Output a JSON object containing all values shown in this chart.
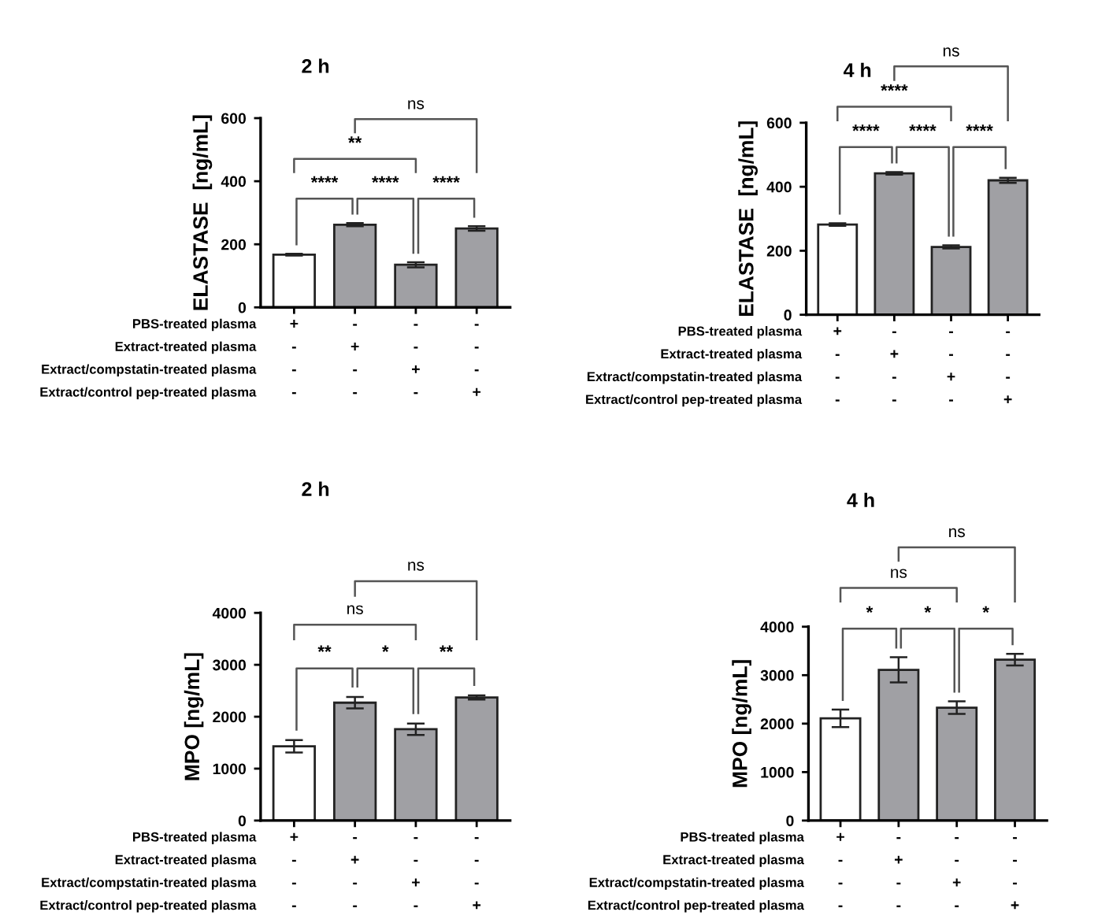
{
  "chart_data": [
    {
      "type": "bar",
      "title": "2 h",
      "ylabel": "ELASTASE  [ng/mL]",
      "categories": [
        "+\n-\n-\n-",
        "-\n+\n-\n-",
        "-\n-\n+\n-",
        "-\n-\n-\n+"
      ],
      "values": [
        167,
        262,
        135,
        250
      ],
      "errors": [
        3,
        5,
        8,
        7
      ],
      "colors": [
        "#ffffff",
        "#a0a0a4",
        "#a0a0a4",
        "#a0a0a4"
      ],
      "ylim": [
        0,
        600
      ],
      "yticks": [
        0,
        200,
        400,
        600
      ],
      "annotations": [
        "PBS-treated plasma",
        "Extract-treated plasma",
        "Extract/compstatin-treated plasma",
        "Extract/control pep-treated plasma",
        "****",
        "****",
        "****",
        "**",
        "ns"
      ]
    },
    {
      "type": "bar",
      "title": "4 h",
      "ylabel": "ELASTASE  [ng/mL]",
      "categories": [
        "+\n-\n-\n-",
        "-\n+\n-\n-",
        "-\n-\n+\n-",
        "-\n-\n-\n+"
      ],
      "values": [
        282,
        442,
        212,
        420
      ],
      "errors": [
        4,
        4,
        5,
        8
      ],
      "colors": [
        "#ffffff",
        "#a0a0a4",
        "#a0a0a4",
        "#a0a0a4"
      ],
      "ylim": [
        0,
        600
      ],
      "yticks": [
        0,
        200,
        400,
        600
      ],
      "annotations": [
        "PBS-treated plasma",
        "Extract-treated plasma",
        "Extract/compstatin-treated plasma",
        "Extract/control pep-treated plasma",
        "****",
        "****",
        "****",
        "****",
        "ns"
      ]
    },
    {
      "type": "bar",
      "title": "2 h",
      "ylabel": "MPO [ng/mL]",
      "categories": [
        "+\n-\n-\n-",
        "-\n+\n-\n-",
        "-\n-\n+\n-",
        "-\n-\n-\n+"
      ],
      "values": [
        1430,
        2270,
        1760,
        2370
      ],
      "errors": [
        120,
        110,
        110,
        40
      ],
      "colors": [
        "#ffffff",
        "#a0a0a4",
        "#a0a0a4",
        "#a0a0a4"
      ],
      "ylim": [
        0,
        4000
      ],
      "yticks": [
        0,
        1000,
        2000,
        3000,
        4000
      ],
      "annotations": [
        "PBS-treated plasma",
        "Extract-treated plasma",
        "Extract/compstatin-treated plasma",
        "Extract/control pep-treated plasma",
        "**",
        "*",
        "**",
        "ns",
        "ns"
      ]
    },
    {
      "type": "bar",
      "title": "4 h",
      "ylabel": "MPO [ng/mL]",
      "categories": [
        "+\n-\n-\n-",
        "-\n+\n-\n-",
        "-\n-\n+\n-",
        "-\n-\n-\n+"
      ],
      "values": [
        2110,
        3110,
        2330,
        3320
      ],
      "errors": [
        180,
        260,
        130,
        120
      ],
      "colors": [
        "#ffffff",
        "#a0a0a4",
        "#a0a0a4",
        "#a0a0a4"
      ],
      "ylim": [
        0,
        4000
      ],
      "yticks": [
        0,
        1000,
        2000,
        3000,
        4000
      ],
      "annotations": [
        "PBS-treated plasma",
        "Extract-treated plasma",
        "Extract/compstatin-treated plasma",
        "Extract/control pep-treated plasma",
        "*",
        "*",
        "*",
        "ns",
        "ns"
      ]
    }
  ]
}
